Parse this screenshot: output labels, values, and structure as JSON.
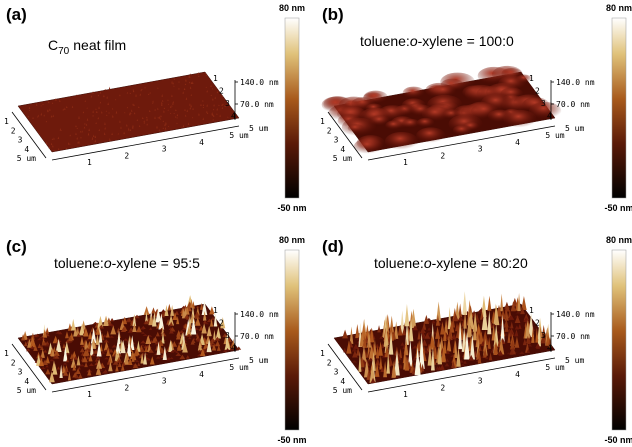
{
  "panels": [
    {
      "letter": "(a)",
      "title": [
        {
          "text": "C"
        },
        {
          "text": "70",
          "style": "sub"
        },
        {
          "text": "neat film"
        }
      ],
      "colorbar_max": "80 nm",
      "colorbar_min": "-50 nm",
      "z_ticks": [
        "140.0 nm",
        "70.0 nm"
      ],
      "x_ticks": [
        "1",
        "2",
        "3",
        "4",
        "5 um"
      ],
      "y_ticks": [
        "1",
        "2",
        "3",
        "4",
        "5 um"
      ],
      "side_ticks": [
        "1",
        "2",
        "3",
        "4",
        "5 um"
      ]
    },
    {
      "letter": "(b)",
      "title": [
        {
          "text": "toluene:"
        },
        {
          "text": "o",
          "style": "italic"
        },
        {
          "text": "-xylene = 100:0"
        }
      ],
      "colorbar_max": "80 nm",
      "colorbar_min": "-50 nm",
      "z_ticks": [
        "140.0 nm",
        "70.0 nm"
      ],
      "x_ticks": [
        "1",
        "2",
        "3",
        "4",
        "5 um"
      ],
      "y_ticks": [
        "1",
        "2",
        "3",
        "4",
        "5 um"
      ],
      "side_ticks": [
        "1",
        "2",
        "3",
        "4",
        "5 um"
      ]
    },
    {
      "letter": "(c)",
      "title": [
        {
          "text": "toluene:"
        },
        {
          "text": "o",
          "style": "italic"
        },
        {
          "text": "-xylene = 95:5"
        }
      ],
      "colorbar_max": "80 nm",
      "colorbar_min": "-50 nm",
      "z_ticks": [
        "140.0 nm",
        "70.0 nm"
      ],
      "x_ticks": [
        "1",
        "2",
        "3",
        "4",
        "5 um"
      ],
      "y_ticks": [
        "1",
        "2",
        "3",
        "4",
        "5 um"
      ],
      "side_ticks": [
        "1",
        "2",
        "3",
        "4",
        "5 um"
      ]
    },
    {
      "letter": "(d)",
      "title": [
        {
          "text": "toluene:"
        },
        {
          "text": "o",
          "style": "italic"
        },
        {
          "text": "-xylene = 80:20"
        }
      ],
      "colorbar_max": "80 nm",
      "colorbar_min": "-50 nm",
      "z_ticks": [
        "140.0 nm",
        "70.0 nm"
      ],
      "x_ticks": [
        "1",
        "2",
        "3",
        "4",
        "5 um"
      ],
      "y_ticks": [
        "1",
        "2",
        "3",
        "4",
        "5 um"
      ],
      "side_ticks": [
        "1",
        "2",
        "3",
        "4",
        "5 um"
      ]
    }
  ]
}
